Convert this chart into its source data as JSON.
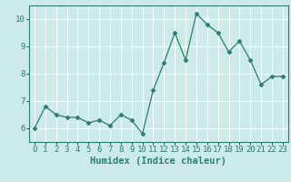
{
  "x": [
    0,
    1,
    2,
    3,
    4,
    5,
    6,
    7,
    8,
    9,
    10,
    11,
    12,
    13,
    14,
    15,
    16,
    17,
    18,
    19,
    20,
    21,
    22,
    23
  ],
  "y": [
    6.0,
    6.8,
    6.5,
    6.4,
    6.4,
    6.2,
    6.3,
    6.1,
    6.5,
    6.3,
    5.8,
    7.4,
    8.4,
    9.5,
    8.5,
    10.2,
    9.8,
    9.5,
    8.8,
    9.2,
    8.5,
    7.6,
    7.9,
    7.9
  ],
  "line_color": "#2d7d6e",
  "marker": "D",
  "marker_size": 2.5,
  "bg_color": "#cceaea",
  "grid_color": "#ffffff",
  "xlabel": "Humidex (Indice chaleur)",
  "ylim": [
    5.5,
    10.5
  ],
  "xlim": [
    -0.5,
    23.5
  ],
  "yticks": [
    6,
    7,
    8,
    9,
    10
  ],
  "xticks": [
    0,
    1,
    2,
    3,
    4,
    5,
    6,
    7,
    8,
    9,
    10,
    11,
    12,
    13,
    14,
    15,
    16,
    17,
    18,
    19,
    20,
    21,
    22,
    23
  ],
  "tick_fontsize": 6.5,
  "xlabel_fontsize": 7.5
}
